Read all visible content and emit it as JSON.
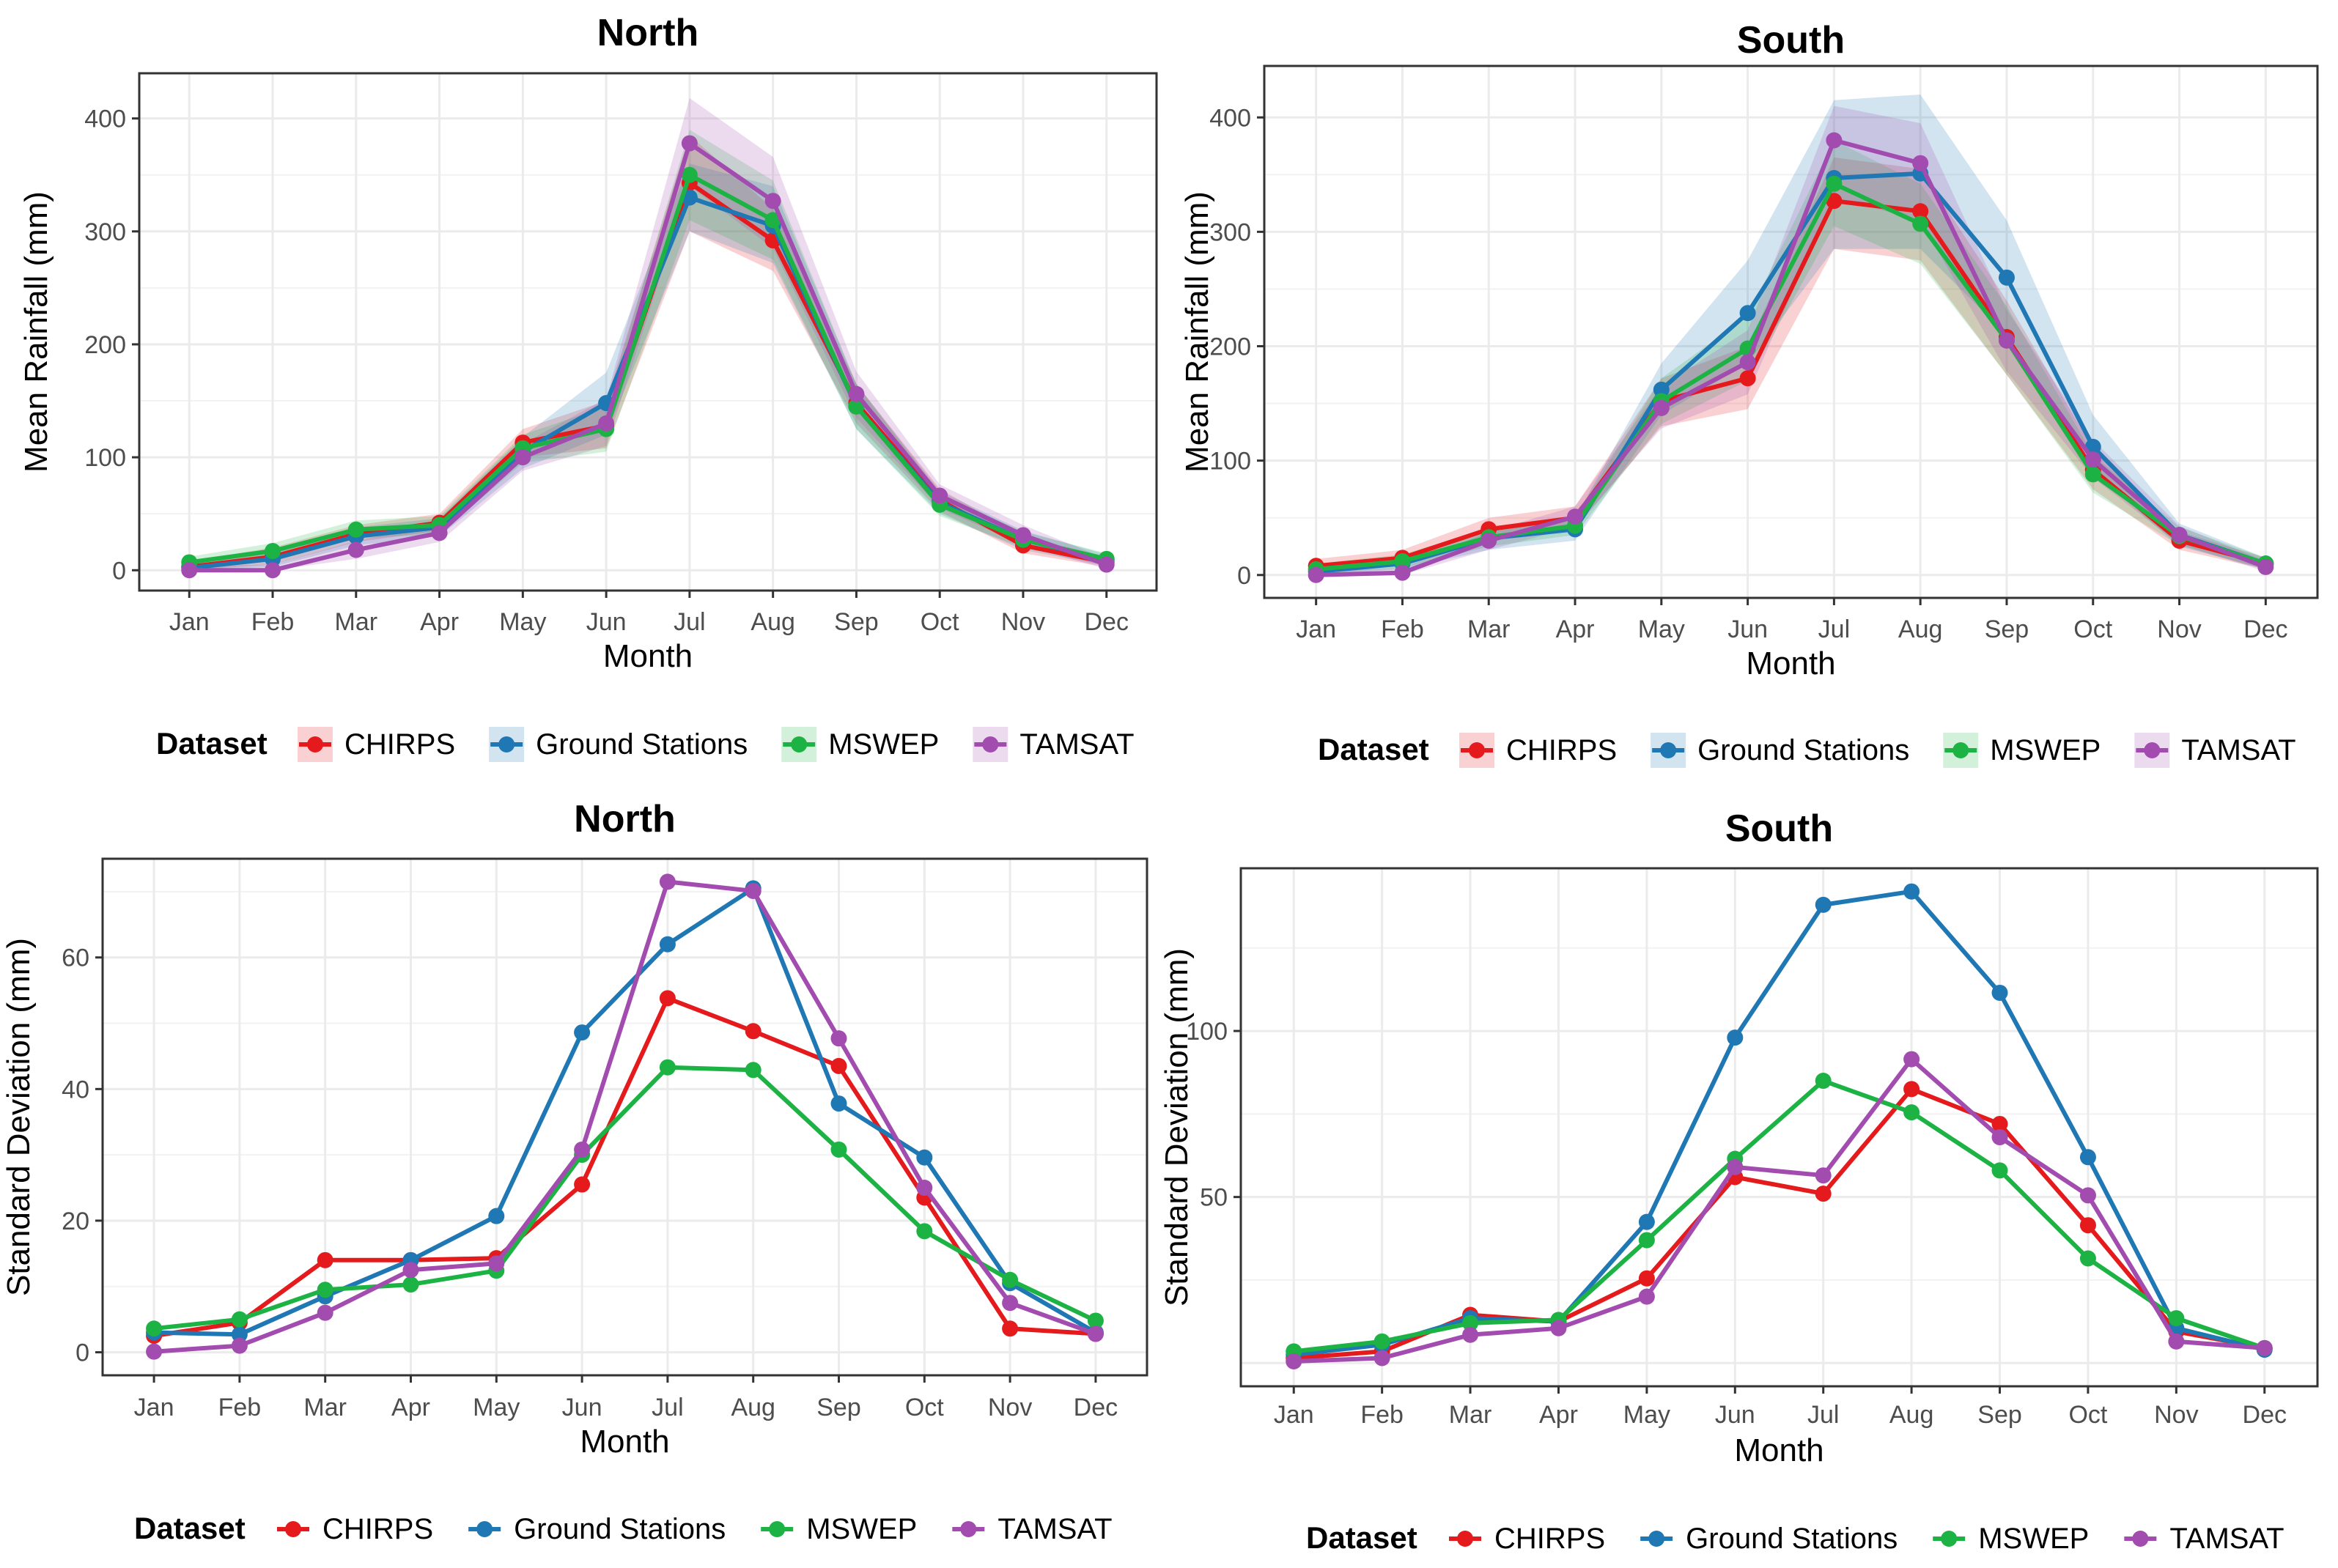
{
  "chart_data": [
    {
      "id": "north-mean",
      "type": "line",
      "title": "North",
      "xlabel": "Month",
      "ylabel": "Mean Rainfall (mm)",
      "categories": [
        "Jan",
        "Feb",
        "Mar",
        "Apr",
        "May",
        "Jun",
        "Jul",
        "Aug",
        "Sep",
        "Oct",
        "Nov",
        "Dec"
      ],
      "yticks": [
        0,
        100,
        200,
        300,
        400
      ],
      "ylim": [
        -18,
        440
      ],
      "grid": true,
      "ribbon": true,
      "legend_title": "Dataset",
      "legend_position": "bottom",
      "series": [
        {
          "name": "CHIRPS",
          "color": "#E41A1C",
          "values": [
            3,
            12,
            32,
            42,
            113,
            128,
            343,
            292,
            148,
            62,
            22,
            7
          ],
          "lower": [
            0,
            5,
            25,
            35,
            100,
            108,
            300,
            265,
            130,
            52,
            15,
            3
          ],
          "upper": [
            8,
            20,
            40,
            50,
            125,
            150,
            385,
            320,
            165,
            72,
            30,
            12
          ]
        },
        {
          "name": "Ground Stations",
          "color": "#1F78B4",
          "values": [
            2,
            10,
            30,
            38,
            105,
            148,
            330,
            305,
            145,
            60,
            27,
            9
          ],
          "lower": [
            0,
            3,
            22,
            30,
            90,
            120,
            300,
            272,
            125,
            50,
            18,
            4
          ],
          "upper": [
            6,
            18,
            38,
            46,
            118,
            175,
            360,
            340,
            165,
            70,
            35,
            14
          ]
        },
        {
          "name": "MSWEP",
          "color": "#1DB344",
          "values": [
            7,
            17,
            36,
            40,
            108,
            125,
            350,
            310,
            145,
            58,
            27,
            10
          ],
          "lower": [
            2,
            10,
            28,
            32,
            95,
            105,
            310,
            275,
            125,
            48,
            20,
            5
          ],
          "upper": [
            12,
            24,
            44,
            48,
            120,
            145,
            390,
            345,
            165,
            68,
            34,
            15
          ]
        },
        {
          "name": "TAMSAT",
          "color": "#A24CB0",
          "values": [
            0,
            0,
            18,
            33,
            100,
            130,
            378,
            327,
            156,
            66,
            31,
            5
          ],
          "lower": [
            0,
            0,
            10,
            25,
            88,
            110,
            340,
            285,
            135,
            55,
            22,
            1
          ],
          "upper": [
            4,
            5,
            26,
            41,
            112,
            152,
            418,
            366,
            176,
            76,
            40,
            10
          ]
        }
      ]
    },
    {
      "id": "south-mean",
      "type": "line",
      "title": "South",
      "xlabel": "Month",
      "ylabel": "Mean Rainfall (mm)",
      "categories": [
        "Jan",
        "Feb",
        "Mar",
        "Apr",
        "May",
        "Jun",
        "Jul",
        "Aug",
        "Sep",
        "Oct",
        "Nov",
        "Dec"
      ],
      "yticks": [
        0,
        100,
        200,
        300,
        400
      ],
      "ylim": [
        -20,
        445
      ],
      "grid": true,
      "ribbon": true,
      "legend_title": "Dataset",
      "legend_position": "bottom",
      "series": [
        {
          "name": "CHIRPS",
          "color": "#E41A1C",
          "values": [
            8,
            15,
            40,
            50,
            152,
            172,
            327,
            318,
            208,
            92,
            30,
            10
          ],
          "lower": [
            2,
            8,
            30,
            40,
            130,
            145,
            285,
            275,
            175,
            75,
            22,
            5
          ],
          "upper": [
            14,
            22,
            50,
            60,
            172,
            200,
            365,
            355,
            240,
            110,
            38,
            15
          ]
        },
        {
          "name": "Ground Stations",
          "color": "#1F78B4",
          "values": [
            3,
            10,
            32,
            40,
            162,
            229,
            347,
            351,
            260,
            112,
            35,
            10
          ],
          "lower": [
            0,
            5,
            22,
            30,
            140,
            185,
            285,
            285,
            210,
            90,
            25,
            5
          ],
          "upper": [
            8,
            16,
            42,
            50,
            185,
            275,
            415,
            420,
            310,
            140,
            45,
            15
          ]
        },
        {
          "name": "MSWEP",
          "color": "#1DB344",
          "values": [
            5,
            12,
            33,
            43,
            152,
            198,
            342,
            307,
            205,
            88,
            34,
            10
          ],
          "lower": [
            1,
            6,
            25,
            35,
            132,
            170,
            305,
            272,
            175,
            72,
            26,
            5
          ],
          "upper": [
            10,
            18,
            41,
            51,
            172,
            226,
            380,
            342,
            235,
            105,
            42,
            15
          ]
        },
        {
          "name": "TAMSAT",
          "color": "#A24CB0",
          "values": [
            0,
            2,
            30,
            51,
            146,
            186,
            380,
            360,
            205,
            101,
            35,
            7
          ],
          "lower": [
            0,
            0,
            22,
            42,
            128,
            158,
            330,
            310,
            178,
            85,
            27,
            3
          ],
          "upper": [
            4,
            6,
            38,
            60,
            165,
            214,
            410,
            395,
            232,
            118,
            43,
            12
          ]
        }
      ]
    },
    {
      "id": "north-sd",
      "type": "line",
      "title": "North",
      "xlabel": "Month",
      "ylabel": "Standard Deviation (mm)",
      "categories": [
        "Jan",
        "Feb",
        "Mar",
        "Apr",
        "May",
        "Jun",
        "Jul",
        "Aug",
        "Sep",
        "Oct",
        "Nov",
        "Dec"
      ],
      "yticks": [
        0,
        20,
        40,
        60
      ],
      "ylim": [
        -3.5,
        75
      ],
      "grid": true,
      "ribbon": false,
      "legend_title": "Dataset",
      "legend_position": "bottom",
      "series": [
        {
          "name": "CHIRPS",
          "color": "#E41A1C",
          "values": [
            2.5,
            4.5,
            14.0,
            14.0,
            14.3,
            25.5,
            53.8,
            48.8,
            43.5,
            23.5,
            3.6,
            2.8
          ]
        },
        {
          "name": "Ground Stations",
          "color": "#1F78B4",
          "values": [
            3.0,
            2.7,
            8.5,
            14.0,
            20.7,
            48.6,
            62.0,
            70.5,
            37.8,
            29.6,
            10.5,
            3.0
          ]
        },
        {
          "name": "MSWEP",
          "color": "#1DB344",
          "values": [
            3.6,
            5.0,
            9.5,
            10.3,
            12.4,
            30.0,
            43.3,
            42.9,
            30.8,
            18.4,
            11.0,
            4.8
          ]
        },
        {
          "name": "TAMSAT",
          "color": "#A24CB0",
          "values": [
            0.1,
            1.0,
            6.0,
            12.5,
            13.5,
            30.8,
            71.5,
            70.1,
            47.7,
            25.0,
            7.5,
            2.8
          ]
        }
      ]
    },
    {
      "id": "south-sd",
      "type": "line",
      "title": "South",
      "xlabel": "Month",
      "ylabel": "Standard Deviation (mm)",
      "categories": [
        "Jan",
        "Feb",
        "Mar",
        "Apr",
        "May",
        "Jun",
        "Jul",
        "Aug",
        "Sep",
        "Oct",
        "Nov",
        "Dec"
      ],
      "yticks": [
        50,
        100
      ],
      "ylim": [
        -7,
        149
      ],
      "grid": true,
      "ribbon": false,
      "legend_title": "Dataset",
      "legend_position": "bottom",
      "series": [
        {
          "name": "CHIRPS",
          "color": "#E41A1C",
          "values": [
            1.5,
            3.5,
            14.5,
            12.5,
            25.5,
            56.0,
            51.0,
            82.5,
            72.0,
            41.5,
            9.5,
            4.5
          ]
        },
        {
          "name": "Ground Stations",
          "color": "#1F78B4",
          "values": [
            2.5,
            5.5,
            13.5,
            12.5,
            42.5,
            98.0,
            138.0,
            142.0,
            111.5,
            62.0,
            10.5,
            4.0
          ]
        },
        {
          "name": "MSWEP",
          "color": "#1DB344",
          "values": [
            3.5,
            6.5,
            12.0,
            13.0,
            37.0,
            61.5,
            85.0,
            75.5,
            58.0,
            31.5,
            13.5,
            4.5
          ]
        },
        {
          "name": "TAMSAT",
          "color": "#A24CB0",
          "values": [
            0.5,
            1.5,
            8.5,
            10.5,
            20.0,
            59.0,
            56.5,
            91.5,
            68.0,
            50.5,
            6.5,
            4.5
          ]
        }
      ]
    }
  ]
}
